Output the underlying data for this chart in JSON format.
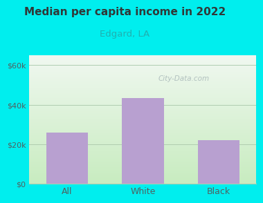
{
  "title": "Median per capita income in 2022",
  "subtitle": "Edgard, LA",
  "categories": [
    "All",
    "White",
    "Black"
  ],
  "values": [
    26000,
    43500,
    22000
  ],
  "bar_color": "#b8a0d0",
  "background_color": "#00EEEE",
  "plot_bg_top_right": "#f0f8f0",
  "plot_bg_bottom_left": "#c8ecc0",
  "title_color": "#303838",
  "subtitle_color": "#20b0b0",
  "tick_label_color": "#506060",
  "yticks": [
    0,
    20000,
    40000,
    60000
  ],
  "ytick_labels": [
    "$0",
    "$20k",
    "$40k",
    "$60k"
  ],
  "ylim": [
    0,
    65000
  ],
  "grid_color": "#b0ccb0",
  "watermark": "City-Data.com"
}
